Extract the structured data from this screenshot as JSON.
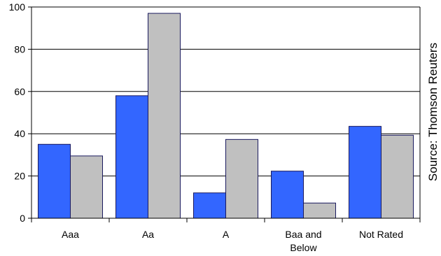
{
  "chart_data": {
    "type": "bar",
    "title": "",
    "xlabel": "",
    "ylabel": "",
    "categories": [
      [
        "Aaa"
      ],
      [
        "Aa"
      ],
      [
        "A"
      ],
      [
        "Baa and",
        "Below"
      ],
      [
        "Not Rated"
      ]
    ],
    "series": [
      {
        "color": "#3366ff",
        "values": [
          35,
          58,
          12,
          22.3,
          43.5
        ]
      },
      {
        "color": "#c0c0c0",
        "values": [
          29.5,
          97,
          37.3,
          7.2,
          39.3
        ]
      }
    ],
    "ylim": [
      0,
      100
    ],
    "yticks": [
      "0",
      "20",
      "40",
      "60",
      "80",
      "100"
    ],
    "grid": true,
    "legend": "none",
    "side_note": "Source: Thomson Reuters"
  }
}
